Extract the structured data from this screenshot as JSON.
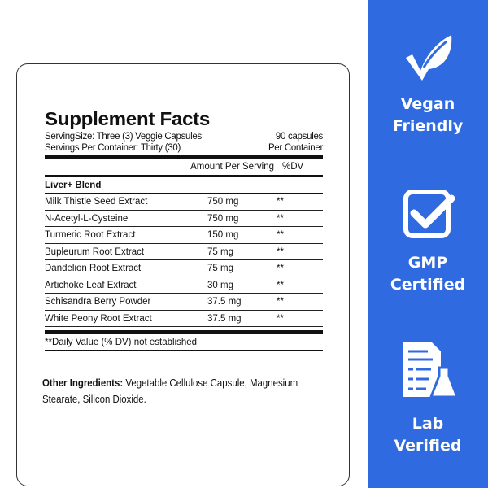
{
  "facts": {
    "title": "Supplement Facts",
    "serving_size": "ServingSize: Three (3) Veggie Capsules",
    "capsules": "90 capsules",
    "servings_per_container": "Servings Per Container: Thirty (30)",
    "per_container": "Per Container",
    "amount_header": "Amount Per Serving",
    "dv_header": "%DV",
    "blend": "Liver+ Blend",
    "rows": [
      {
        "name": "Milk Thistle Seed Extract",
        "amount": "750 mg",
        "dv": "**"
      },
      {
        "name": "N-Acetyl-L-Cysteine",
        "amount": "750 mg",
        "dv": "**"
      },
      {
        "name": "Turmeric Root Extract",
        "amount": "150 mg",
        "dv": "**"
      },
      {
        "name": "Bupleurum Root Extract",
        "amount": "75 mg",
        "dv": "**"
      },
      {
        "name": "Dandelion Root Extract",
        "amount": "75 mg",
        "dv": "**"
      },
      {
        "name": "Artichoke Leaf Extract",
        "amount": "30 mg",
        "dv": "**"
      },
      {
        "name": "Schisandra Berry Powder",
        "amount": "37.5 mg",
        "dv": "**"
      },
      {
        "name": "White Peony Root Extract",
        "amount": "37.5 mg",
        "dv": "**"
      }
    ],
    "footnote": "**Daily Value (% DV) not established"
  },
  "other": {
    "label": "Other Ingredients:",
    "text": " Vegetable Cellulose Capsule, Magnesium Stearate, Silicon Dioxide."
  },
  "badges": [
    {
      "icon": "leaf-check-icon",
      "line1": "Vegan",
      "line2": "Friendly"
    },
    {
      "icon": "checkbox-icon",
      "line1": "GMP",
      "line2": "Certified"
    },
    {
      "icon": "lab-document-flask-icon",
      "line1": "Lab",
      "line2": "Verified"
    }
  ],
  "colors": {
    "panel": "#2f6ae0"
  }
}
